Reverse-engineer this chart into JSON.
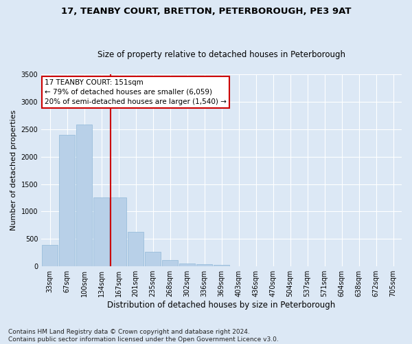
{
  "title": "17, TEANBY COURT, BRETTON, PETERBOROUGH, PE3 9AT",
  "subtitle": "Size of property relative to detached houses in Peterborough",
  "xlabel": "Distribution of detached houses by size in Peterborough",
  "ylabel": "Number of detached properties",
  "categories": [
    "33sqm",
    "67sqm",
    "100sqm",
    "134sqm",
    "167sqm",
    "201sqm",
    "235sqm",
    "268sqm",
    "302sqm",
    "336sqm",
    "369sqm",
    "403sqm",
    "436sqm",
    "470sqm",
    "504sqm",
    "537sqm",
    "571sqm",
    "604sqm",
    "638sqm",
    "672sqm",
    "705sqm"
  ],
  "values": [
    390,
    2400,
    2590,
    1250,
    1250,
    630,
    270,
    110,
    55,
    45,
    30,
    0,
    0,
    0,
    0,
    0,
    0,
    0,
    0,
    0,
    0
  ],
  "bar_color": "#b8d0e8",
  "bar_edge_color": "#90b8d8",
  "vline_color": "#cc0000",
  "annotation_title": "17 TEANBY COURT: 151sqm",
  "annotation_line1": "← 79% of detached houses are smaller (6,059)",
  "annotation_line2": "20% of semi-detached houses are larger (1,540) →",
  "annotation_box_color": "#ffffff",
  "annotation_box_edge": "#cc0000",
  "ylim": [
    0,
    3500
  ],
  "yticks": [
    0,
    500,
    1000,
    1500,
    2000,
    2500,
    3000,
    3500
  ],
  "bg_color": "#dce8f5",
  "plot_bg_color": "#dce8f5",
  "footer": "Contains HM Land Registry data © Crown copyright and database right 2024.\nContains public sector information licensed under the Open Government Licence v3.0.",
  "title_fontsize": 9.5,
  "subtitle_fontsize": 8.5,
  "xlabel_fontsize": 8.5,
  "ylabel_fontsize": 8,
  "tick_fontsize": 7,
  "footer_fontsize": 6.5,
  "annot_fontsize": 7.5
}
